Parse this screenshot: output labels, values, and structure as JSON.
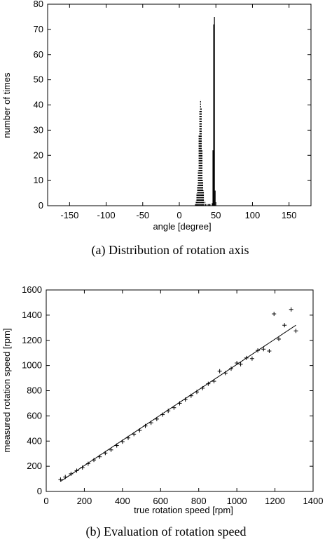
{
  "chart_data": [
    {
      "type": "bar",
      "caption": "(a) Distribution of rotation axis",
      "xlabel": "angle [degree]",
      "ylabel": "number of times",
      "xlim": [
        -180,
        180
      ],
      "ylim": [
        0,
        80
      ],
      "xticks": [
        -150,
        -100,
        -50,
        0,
        50,
        100,
        150
      ],
      "yticks": [
        0,
        10,
        20,
        30,
        40,
        50,
        60,
        70,
        80
      ],
      "series": [
        {
          "style": "dashed",
          "x": [
            22,
            23,
            24,
            25,
            26,
            27,
            28,
            29,
            30,
            31,
            32,
            33,
            35,
            36,
            38,
            40,
            41,
            42
          ],
          "values": [
            1,
            2,
            5,
            8,
            14,
            28,
            38,
            42,
            39,
            22,
            10,
            6,
            2,
            1,
            1,
            1,
            1,
            1
          ]
        },
        {
          "style": "solid",
          "x": [
            45,
            46,
            47,
            48,
            49
          ],
          "values": [
            1,
            22,
            72,
            75,
            6
          ]
        }
      ]
    },
    {
      "type": "scatter",
      "caption": "(b) Evaluation of rotation speed",
      "xlabel": "true rotation speed [rpm]",
      "ylabel": "measured rotation speed [rpm]",
      "xlim": [
        0,
        1400
      ],
      "ylim": [
        0,
        1600
      ],
      "xticks": [
        0,
        200,
        400,
        600,
        800,
        1000,
        1200,
        1400
      ],
      "yticks": [
        0,
        200,
        400,
        600,
        800,
        1000,
        1200,
        1400,
        1600
      ],
      "x": [
        75,
        100,
        130,
        160,
        190,
        220,
        250,
        280,
        310,
        340,
        370,
        400,
        430,
        460,
        490,
        520,
        550,
        580,
        610,
        640,
        670,
        700,
        730,
        760,
        790,
        820,
        850,
        880,
        910,
        940,
        970,
        1000,
        1020,
        1050,
        1080,
        1110,
        1140,
        1170,
        1195,
        1220,
        1250,
        1285,
        1310
      ],
      "values": [
        95,
        115,
        140,
        165,
        190,
        220,
        250,
        275,
        305,
        330,
        365,
        395,
        425,
        455,
        485,
        520,
        545,
        575,
        610,
        640,
        665,
        700,
        730,
        760,
        790,
        820,
        855,
        875,
        955,
        940,
        975,
        1020,
        1010,
        1060,
        1055,
        1120,
        1130,
        1115,
        1410,
        1210,
        1320,
        1445,
        1275
      ],
      "fit_line": {
        "x": [
          75,
          1310
        ],
        "values": [
          80,
          1320
        ]
      }
    }
  ]
}
